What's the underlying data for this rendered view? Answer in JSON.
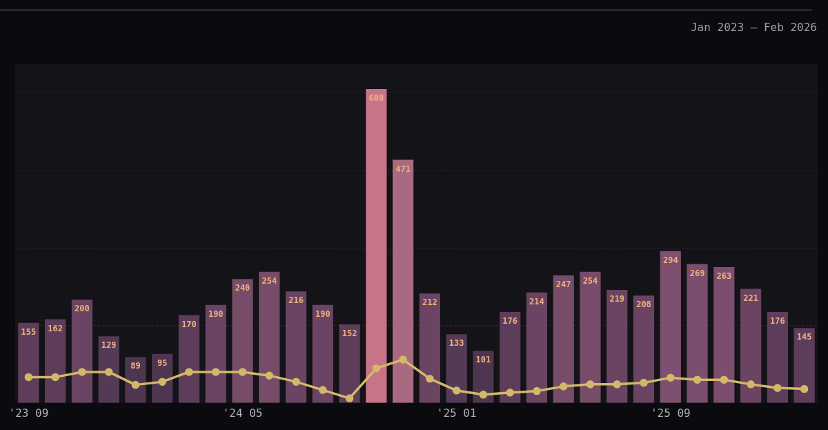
{
  "chart_data": {
    "type": "bar",
    "subtitle": "Jan 2023 – Feb 2026",
    "categories": [
      "'23 09",
      null,
      null,
      null,
      null,
      null,
      null,
      null,
      "'24 05",
      null,
      null,
      null,
      null,
      null,
      null,
      null,
      "'25 01",
      null,
      null,
      null,
      null,
      null,
      null,
      null,
      "'25 09",
      null,
      null,
      null,
      null,
      null
    ],
    "series": [
      {
        "colors": [
          "#5e3d5a",
          "#5e3d5a",
          "#6a4462",
          "#553a55",
          "#4f3650",
          "#4f3650",
          "#5e3d5a",
          "#6a4462",
          "#764c68",
          "#764c68",
          "#6a4462",
          "#6a4462",
          "#5e3d5a",
          "#c87488",
          "#a86a80",
          "#6a4462",
          "#553a55",
          "#4f3650",
          "#5e3d5a",
          "#6a4462",
          "#764c68",
          "#764c68",
          "#6a4462",
          "#6a4462",
          "#7e5070",
          "#7a4e6c",
          "#7a4e6c",
          "#6a4462",
          "#5e3d5a",
          "#5e3d5a"
        ],
        "values": [
          155,
          162,
          200,
          129,
          89,
          95,
          170,
          190,
          240,
          254,
          216,
          190,
          152,
          608,
          471,
          212,
          133,
          101,
          176,
          214,
          247,
          254,
          219,
          208,
          294,
          269,
          263,
          221,
          176,
          145
        ],
        "value_labels": [
          "155",
          "162",
          "200",
          "129",
          "89",
          "95",
          "170",
          "190",
          "240",
          "254",
          "216",
          "190",
          "152",
          "608",
          "471",
          "212",
          "133",
          "101",
          "176",
          "214",
          "247",
          "254",
          "219",
          "208",
          "294",
          "269",
          "263",
          "221",
          "176",
          "145"
        ]
      },
      {
        "type": "line",
        "color": "#d4b86a",
        "values": [
          50,
          50,
          60,
          60,
          35,
          41,
          60,
          60,
          60,
          53,
          41,
          25,
          9,
          67,
          84,
          47,
          24,
          16,
          20,
          23,
          32,
          36,
          36,
          39,
          49,
          45,
          45,
          36,
          29,
          27
        ]
      }
    ],
    "ylim": [
      0,
      656
    ],
    "yticks": [
      {
        "value": 150,
        "label": null
      },
      {
        "value": 300,
        "label": null
      },
      {
        "value": 450,
        "label": null
      },
      {
        "value": 600,
        "label": null
      }
    ],
    "grid": "y",
    "tick_labels": "x",
    "marker": "circle",
    "line_style": "solid",
    "legend": false
  }
}
